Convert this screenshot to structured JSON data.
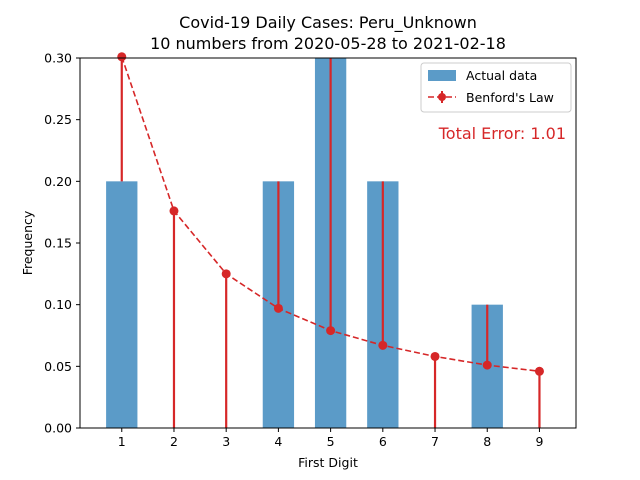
{
  "chart_data": {
    "type": "bar",
    "title": "Covid-19 Daily Cases: Peru_Unknown",
    "subtitle": "10 numbers from 2020-05-28 to 2021-02-18",
    "xlabel": "First Digit",
    "ylabel": "Frequency",
    "categories": [
      "1",
      "2",
      "3",
      "4",
      "5",
      "6",
      "7",
      "8",
      "9"
    ],
    "xlim": [
      0.2,
      9.7
    ],
    "ylim": [
      0,
      0.3
    ],
    "yticks": [
      "0.00",
      "0.05",
      "0.10",
      "0.15",
      "0.20",
      "0.25",
      "0.30"
    ],
    "grid": false,
    "legend_placement": "top-right",
    "series": [
      {
        "name": "Actual data",
        "type": "bar",
        "color": "#5b9bc8",
        "values": [
          0.2,
          0.0,
          0.0,
          0.2,
          0.3,
          0.2,
          0.0,
          0.1,
          0.0
        ]
      },
      {
        "name": "Benford's Law",
        "type": "line",
        "style": "dashed with markers and error bars",
        "color": "#d62728",
        "values": [
          0.301,
          0.176,
          0.125,
          0.097,
          0.079,
          0.067,
          0.058,
          0.051,
          0.046
        ]
      }
    ],
    "annotation": {
      "text": "Total Error: 1.01",
      "color": "#d62728",
      "placement": "top-right"
    }
  }
}
